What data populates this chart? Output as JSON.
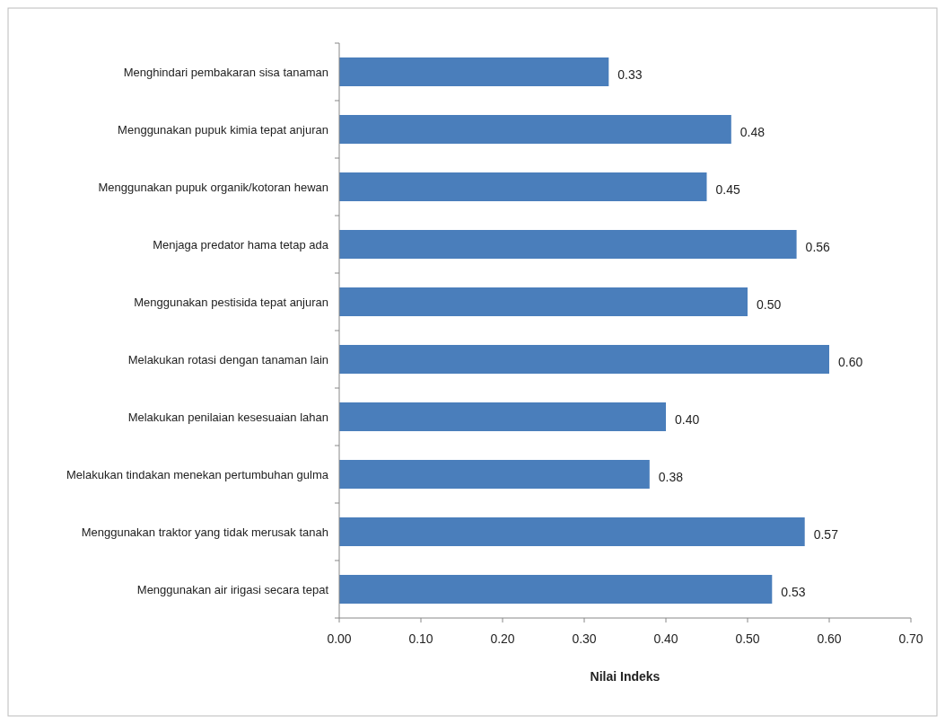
{
  "chart_data": {
    "type": "bar",
    "orientation": "horizontal",
    "xlabel": "Nilai Indeks",
    "categories": [
      "Menghindari pembakaran sisa tanaman",
      "Menggunakan pupuk kimia tepat anjuran",
      "Menggunakan pupuk  organik/kotoran hewan",
      "Menjaga predator hama tetap ada",
      "Menggunakan pestisida tepat anjuran",
      "Melakukan rotasi dengan tanaman lain",
      "Melakukan penilaian kesesuaian lahan",
      "Melakukan tindakan menekan pertumbuhan gulma",
      "Menggunakan traktor yang tidak merusak tanah",
      "Menggunakan air irigasi secara tepat"
    ],
    "values": [
      0.33,
      0.48,
      0.45,
      0.56,
      0.5,
      0.6,
      0.4,
      0.38,
      0.57,
      0.53
    ],
    "value_labels": [
      "0.33",
      "0.48",
      "0.45",
      "0.56",
      "0.50",
      "0.60",
      "0.40",
      "0.38",
      "0.57",
      "0.53"
    ],
    "color": "#4a7ebb",
    "xlim": [
      0,
      0.7
    ],
    "xticks": [
      {
        "value": 0,
        "label": "0.00"
      },
      {
        "value": 0.1,
        "label": "0.10"
      },
      {
        "value": 0.2,
        "label": "0.20"
      },
      {
        "value": 0.3,
        "label": "0.30"
      },
      {
        "value": 0.4,
        "label": "0.40"
      },
      {
        "value": 0.5,
        "label": "0.50"
      },
      {
        "value": 0.6,
        "label": "0.60"
      },
      {
        "value": 0.7,
        "label": "0.70"
      }
    ],
    "grid": false
  }
}
